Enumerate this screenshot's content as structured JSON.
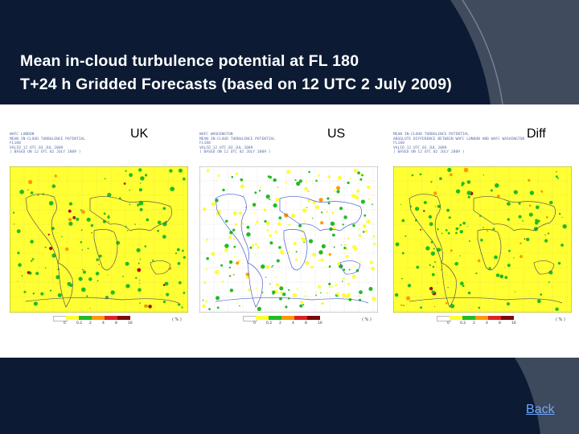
{
  "title": {
    "line1": "Mean in-cloud turbulence potential at FL 180",
    "line2": "T+24 h Gridded Forecasts (based on 12 UTC 2 July 2009)"
  },
  "panels": [
    {
      "label": "UK",
      "header": "WAFC LONDON\nMEAN IN-CLOUD TURBULENCE POTENTIAL\nFL180\nVALID 12 UTC 03 JUL 2009\n( BASED ON 12 UTC 02 JULY 2009 )",
      "style": "dense"
    },
    {
      "label": "US",
      "header": "WAFC WASHINGTON\nMEAN IN-CLOUD TURBULENCE POTENTIAL\nFL180\nVALID 12 UTC 03 JUL 2009\n( BASED ON 12 UTC 02 JULY 2009 )",
      "style": "sparse"
    },
    {
      "label": "Diff",
      "header": "MEAN IN-CLOUD TURBULENCE POTENTIAL\nABSOLUTE DIFFERENCE BETWEEN WAFC LONDON AND WAFC WASHINGTON\nFL180\nVALID 12 UTC 03 JUL 2009\n( BASED ON 12 UTC 02 JULY 2009 )",
      "style": "dense"
    }
  ],
  "legend": {
    "ticks": [
      "0",
      "0.2",
      "2",
      "4",
      "8",
      "16"
    ],
    "unit": "( % )",
    "colors": [
      "#ffffff",
      "#ffff33",
      "#22bb22",
      "#ff9900",
      "#dd2222",
      "#7a0a0a"
    ]
  },
  "back_label": "Back"
}
